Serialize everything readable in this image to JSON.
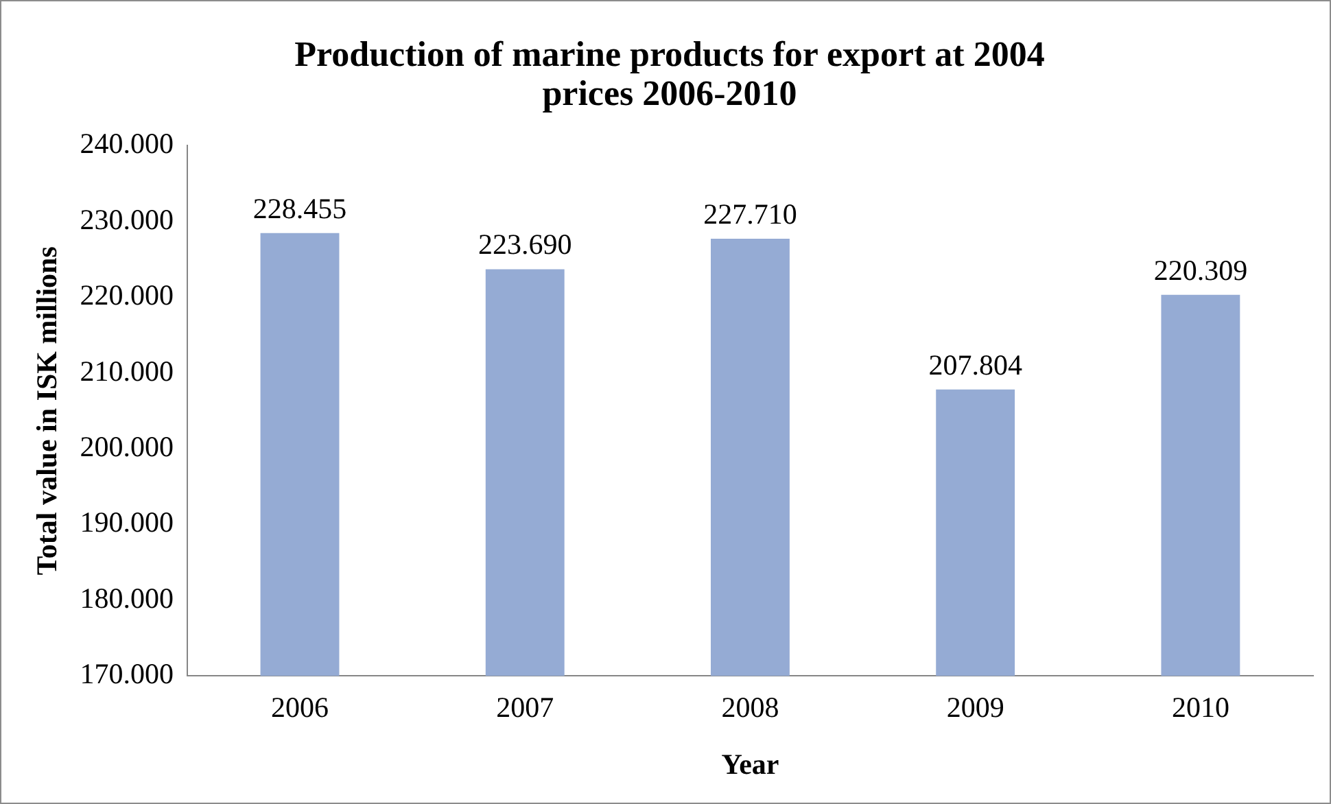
{
  "chart_data": {
    "type": "bar",
    "title": "Production of marine products for export at 2004 prices 2006-2010",
    "xlabel": "Year",
    "ylabel": "Total value in ISK millions",
    "categories": [
      "2006",
      "2007",
      "2008",
      "2009",
      "2010"
    ],
    "values": [
      228455,
      223690,
      227710,
      207804,
      220309
    ],
    "value_labels": [
      "228.455",
      "223.690",
      "227.710",
      "207.804",
      "220.309"
    ],
    "color": "#95abd4",
    "ylim": [
      170000,
      240000
    ],
    "yticks": [
      {
        "value": 170000,
        "label": "170.000"
      },
      {
        "value": 180000,
        "label": "180.000"
      },
      {
        "value": 190000,
        "label": "190.000"
      },
      {
        "value": 200000,
        "label": "200.000"
      },
      {
        "value": 210000,
        "label": "210.000"
      },
      {
        "value": 220000,
        "label": "220.000"
      },
      {
        "value": 230000,
        "label": "230.000"
      },
      {
        "value": 240000,
        "label": "240.000"
      }
    ],
    "grid": false,
    "legend": false
  }
}
